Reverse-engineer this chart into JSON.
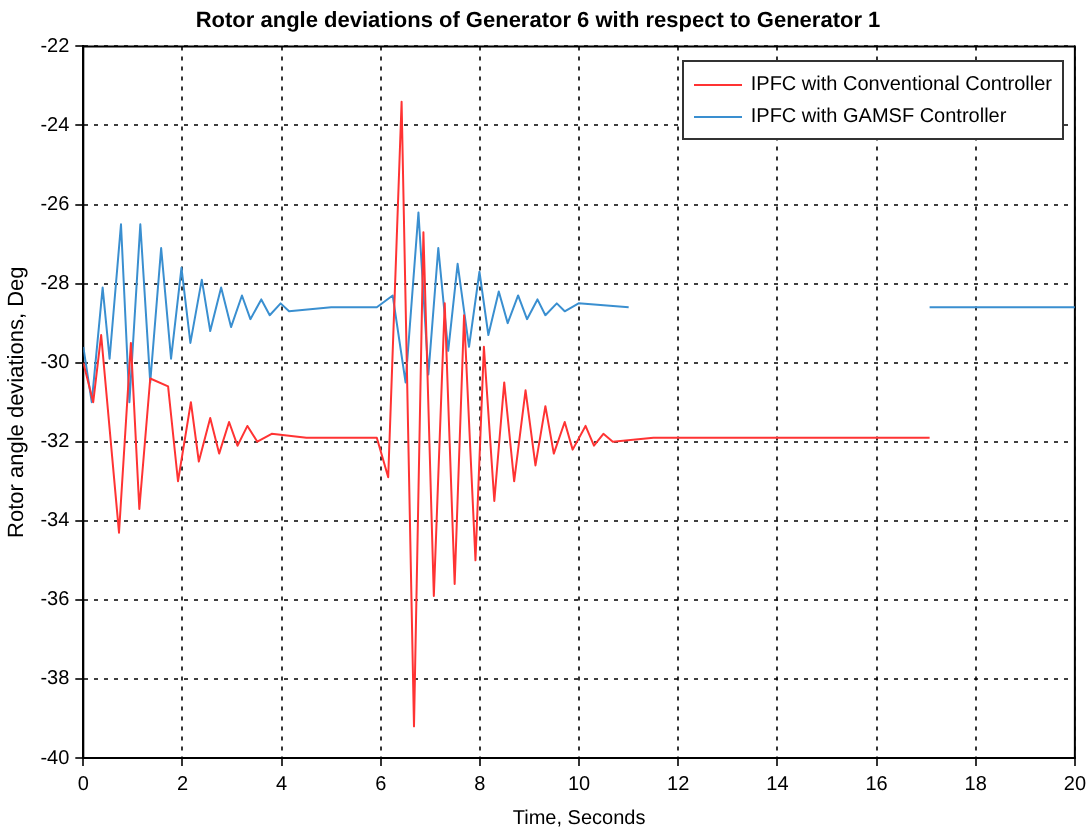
{
  "chart_data": {
    "type": "line",
    "title": "Rotor angle deviations of Generator 6 with respect to Generator 1",
    "xlabel": "Time, Seconds",
    "ylabel": "Rotor angle deviations, Deg",
    "xlim": [
      0,
      20
    ],
    "xticks": [
      0,
      2,
      4,
      6,
      8,
      10,
      12,
      14,
      16,
      18,
      20
    ],
    "ylim": [
      -40,
      -22
    ],
    "yticks": [
      -40,
      -38,
      -36,
      -34,
      -32,
      -30,
      -28,
      -26,
      -24,
      -22
    ],
    "grid": true,
    "legend": "top right",
    "marker": "none",
    "series": [
      {
        "name": "IPFC with Conventional Controller",
        "color": "#ff3333",
        "x": [
          0,
          0.2,
          0.36,
          0.72,
          0.96,
          1.13,
          1.35,
          1.71,
          1.91,
          2.17,
          2.33,
          2.56,
          2.74,
          2.94,
          3.11,
          3.31,
          3.51,
          3.8,
          4.5,
          5.92,
          6.15,
          6.42,
          6.67,
          6.86,
          7.07,
          7.29,
          7.49,
          7.68,
          7.91,
          8.08,
          8.29,
          8.49,
          8.69,
          8.92,
          9.12,
          9.32,
          9.49,
          9.71,
          9.87,
          10.13,
          10.3,
          10.49,
          10.68,
          11.5,
          17.07
        ],
        "values": [
          -30,
          -31,
          -29.3,
          -34.3,
          -29.5,
          -33.7,
          -30.4,
          -30.6,
          -33,
          -31,
          -32.5,
          -31.4,
          -32.3,
          -31.5,
          -32.1,
          -31.6,
          -32,
          -31.8,
          -31.9,
          -31.9,
          -32.9,
          -23.4,
          -39.2,
          -26.7,
          -35.9,
          -28.5,
          -35.6,
          -28.8,
          -35,
          -29.6,
          -33.5,
          -30.5,
          -33,
          -30.7,
          -32.6,
          -31.1,
          -32.3,
          -31.5,
          -32.2,
          -31.6,
          -32.1,
          -31.8,
          -32,
          -31.9,
          -31.9
        ]
      },
      {
        "name": "IPFC with GAMSF Controller",
        "color": "#3a8fd0",
        "x": [
          0,
          0.17,
          0.39,
          0.53,
          0.76,
          0.93,
          1.15,
          1.35,
          1.57,
          1.77,
          1.98,
          2.16,
          2.39,
          2.56,
          2.78,
          2.98,
          3.2,
          3.37,
          3.59,
          3.76,
          3.98,
          4.15,
          5,
          5.92,
          6.24,
          6.5,
          6.76,
          6.96,
          7.16,
          7.36,
          7.55,
          7.78,
          7.99,
          8.17,
          8.38,
          8.56,
          8.77,
          8.95,
          9.16,
          9.32,
          9.55,
          9.71,
          9.99,
          11,
          14,
          17.07,
          20
        ],
        "values": [
          -29.6,
          -31,
          -28.1,
          -29.9,
          -26.5,
          -31,
          -26.5,
          -30.5,
          -27.1,
          -29.9,
          -27.6,
          -29.5,
          -27.9,
          -29.2,
          -28.1,
          -29.1,
          -28.3,
          -28.9,
          -28.4,
          -28.8,
          -28.5,
          -28.7,
          -28.6,
          -28.6,
          -28.3,
          -30.5,
          -26.2,
          -30.3,
          -27.1,
          -29.7,
          -27.5,
          -29.6,
          -27.7,
          -29.3,
          -28.2,
          -29,
          -28.3,
          -28.9,
          -28.4,
          -28.8,
          -28.5,
          -28.7,
          -28.5,
          -28.6,
          null,
          -28.6,
          -28.6
        ]
      }
    ]
  }
}
